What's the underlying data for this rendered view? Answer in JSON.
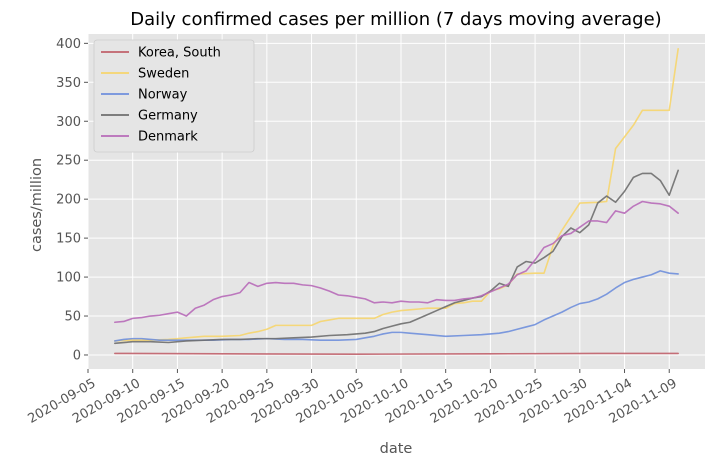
{
  "chart_data": {
    "type": "line",
    "title": "Daily confirmed cases per million (7 days moving average)",
    "xlabel": "date",
    "ylabel": "cases/million",
    "x_range": [
      "2020-09-05",
      "2020-11-13"
    ],
    "ylim": [
      -18,
      412
    ],
    "y_ticks": [
      0,
      50,
      100,
      150,
      200,
      250,
      300,
      350,
      400
    ],
    "x_ticks": [
      "2020-09-05",
      "2020-09-10",
      "2020-09-15",
      "2020-09-20",
      "2020-09-25",
      "2020-09-30",
      "2020-10-05",
      "2020-10-10",
      "2020-10-15",
      "2020-10-20",
      "2020-10-25",
      "2020-10-30",
      "2020-11-04",
      "2020-11-09"
    ],
    "grid": true,
    "legend_position": "top-left",
    "style": {
      "background": "#e5e5e5",
      "grid_color": "#ffffff"
    },
    "series": [
      {
        "name": "Korea, South",
        "color": "#c0616a",
        "points": [
          [
            "2020-09-08",
            2
          ],
          [
            "2020-09-20",
            1.5
          ],
          [
            "2020-10-05",
            1
          ],
          [
            "2020-10-20",
            1.5
          ],
          [
            "2020-11-01",
            2
          ],
          [
            "2020-11-10",
            2
          ]
        ]
      },
      {
        "name": "Sweden",
        "color": "#f6d56d",
        "points": [
          [
            "2020-09-08",
            18
          ],
          [
            "2020-09-10",
            19
          ],
          [
            "2020-09-12",
            19
          ],
          [
            "2020-09-14",
            20
          ],
          [
            "2020-09-15",
            21
          ],
          [
            "2020-09-16",
            22
          ],
          [
            "2020-09-18",
            24
          ],
          [
            "2020-09-20",
            24
          ],
          [
            "2020-09-22",
            25
          ],
          [
            "2020-09-23",
            28
          ],
          [
            "2020-09-24",
            30
          ],
          [
            "2020-09-25",
            33
          ],
          [
            "2020-09-26",
            38
          ],
          [
            "2020-09-28",
            38
          ],
          [
            "2020-09-30",
            38
          ],
          [
            "2020-10-01",
            43
          ],
          [
            "2020-10-02",
            45
          ],
          [
            "2020-10-03",
            47
          ],
          [
            "2020-10-05",
            47
          ],
          [
            "2020-10-07",
            47
          ],
          [
            "2020-10-08",
            52
          ],
          [
            "2020-10-09",
            55
          ],
          [
            "2020-10-10",
            57
          ],
          [
            "2020-10-11",
            58
          ],
          [
            "2020-10-12",
            59
          ],
          [
            "2020-10-13",
            60
          ],
          [
            "2020-10-15",
            60
          ],
          [
            "2020-10-16",
            66
          ],
          [
            "2020-10-17",
            67
          ],
          [
            "2020-10-18",
            69
          ],
          [
            "2020-10-19",
            69
          ],
          [
            "2020-10-20",
            82
          ],
          [
            "2020-10-21",
            85
          ],
          [
            "2020-10-22",
            90
          ],
          [
            "2020-10-23",
            104
          ],
          [
            "2020-10-25",
            105
          ],
          [
            "2020-10-26",
            105
          ],
          [
            "2020-10-27",
            140
          ],
          [
            "2020-10-28",
            160
          ],
          [
            "2020-10-30",
            195
          ],
          [
            "2020-11-01",
            196
          ],
          [
            "2020-11-02",
            197
          ],
          [
            "2020-11-03",
            265
          ],
          [
            "2020-11-04",
            280
          ],
          [
            "2020-11-05",
            295
          ],
          [
            "2020-11-06",
            314
          ],
          [
            "2020-11-08",
            314
          ],
          [
            "2020-11-09",
            314
          ],
          [
            "2020-11-10",
            393
          ]
        ]
      },
      {
        "name": "Norway",
        "color": "#6f8fdc",
        "points": [
          [
            "2020-09-08",
            18
          ],
          [
            "2020-09-09",
            20
          ],
          [
            "2020-09-10",
            21
          ],
          [
            "2020-09-11",
            21
          ],
          [
            "2020-09-12",
            20
          ],
          [
            "2020-09-13",
            19
          ],
          [
            "2020-09-15",
            19
          ],
          [
            "2020-09-17",
            19
          ],
          [
            "2020-09-19",
            19
          ],
          [
            "2020-09-21",
            20
          ],
          [
            "2020-09-23",
            20
          ],
          [
            "2020-09-25",
            21
          ],
          [
            "2020-09-27",
            20
          ],
          [
            "2020-09-29",
            20
          ],
          [
            "2020-10-01",
            19
          ],
          [
            "2020-10-03",
            19
          ],
          [
            "2020-10-05",
            20
          ],
          [
            "2020-10-06",
            22
          ],
          [
            "2020-10-07",
            24
          ],
          [
            "2020-10-08",
            27
          ],
          [
            "2020-10-09",
            29
          ],
          [
            "2020-10-10",
            29
          ],
          [
            "2020-10-11",
            28
          ],
          [
            "2020-10-12",
            27
          ],
          [
            "2020-10-13",
            26
          ],
          [
            "2020-10-15",
            24
          ],
          [
            "2020-10-17",
            25
          ],
          [
            "2020-10-19",
            26
          ],
          [
            "2020-10-21",
            28
          ],
          [
            "2020-10-22",
            30
          ],
          [
            "2020-10-23",
            33
          ],
          [
            "2020-10-24",
            36
          ],
          [
            "2020-10-25",
            39
          ],
          [
            "2020-10-26",
            45
          ],
          [
            "2020-10-27",
            50
          ],
          [
            "2020-10-28",
            55
          ],
          [
            "2020-10-29",
            61
          ],
          [
            "2020-10-30",
            66
          ],
          [
            "2020-10-31",
            68
          ],
          [
            "2020-11-01",
            72
          ],
          [
            "2020-11-02",
            78
          ],
          [
            "2020-11-03",
            86
          ],
          [
            "2020-11-04",
            93
          ],
          [
            "2020-11-05",
            97
          ],
          [
            "2020-11-06",
            100
          ],
          [
            "2020-11-07",
            103
          ],
          [
            "2020-11-08",
            108
          ],
          [
            "2020-11-09",
            105
          ],
          [
            "2020-11-10",
            104
          ]
        ]
      },
      {
        "name": "Germany",
        "color": "#6e6e6e",
        "points": [
          [
            "2020-09-08",
            15
          ],
          [
            "2020-09-10",
            17
          ],
          [
            "2020-09-12",
            17
          ],
          [
            "2020-09-14",
            16
          ],
          [
            "2020-09-16",
            18
          ],
          [
            "2020-09-18",
            19
          ],
          [
            "2020-09-20",
            20
          ],
          [
            "2020-09-22",
            20
          ],
          [
            "2020-09-24",
            21
          ],
          [
            "2020-09-26",
            21
          ],
          [
            "2020-09-28",
            22
          ],
          [
            "2020-09-30",
            23
          ],
          [
            "2020-10-02",
            25
          ],
          [
            "2020-10-04",
            26
          ],
          [
            "2020-10-06",
            28
          ],
          [
            "2020-10-07",
            30
          ],
          [
            "2020-10-08",
            34
          ],
          [
            "2020-10-09",
            37
          ],
          [
            "2020-10-10",
            40
          ],
          [
            "2020-10-11",
            42
          ],
          [
            "2020-10-12",
            47
          ],
          [
            "2020-10-13",
            52
          ],
          [
            "2020-10-14",
            57
          ],
          [
            "2020-10-15",
            62
          ],
          [
            "2020-10-16",
            67
          ],
          [
            "2020-10-17",
            70
          ],
          [
            "2020-10-18",
            73
          ],
          [
            "2020-10-19",
            75
          ],
          [
            "2020-10-20",
            82
          ],
          [
            "2020-10-21",
            92
          ],
          [
            "2020-10-22",
            88
          ],
          [
            "2020-10-23",
            113
          ],
          [
            "2020-10-24",
            120
          ],
          [
            "2020-10-25",
            118
          ],
          [
            "2020-10-26",
            125
          ],
          [
            "2020-10-27",
            133
          ],
          [
            "2020-10-28",
            152
          ],
          [
            "2020-10-29",
            163
          ],
          [
            "2020-10-30",
            157
          ],
          [
            "2020-10-31",
            167
          ],
          [
            "2020-11-01",
            195
          ],
          [
            "2020-11-02",
            204
          ],
          [
            "2020-11-03",
            196
          ],
          [
            "2020-11-04",
            210
          ],
          [
            "2020-11-05",
            228
          ],
          [
            "2020-11-06",
            233
          ],
          [
            "2020-11-07",
            233
          ],
          [
            "2020-11-08",
            224
          ],
          [
            "2020-11-09",
            205
          ],
          [
            "2020-11-10",
            237
          ]
        ]
      },
      {
        "name": "Denmark",
        "color": "#b76ab8",
        "points": [
          [
            "2020-09-08",
            42
          ],
          [
            "2020-09-09",
            43
          ],
          [
            "2020-09-10",
            47
          ],
          [
            "2020-09-11",
            48
          ],
          [
            "2020-09-12",
            50
          ],
          [
            "2020-09-13",
            51
          ],
          [
            "2020-09-14",
            53
          ],
          [
            "2020-09-15",
            55
          ],
          [
            "2020-09-16",
            50
          ],
          [
            "2020-09-17",
            60
          ],
          [
            "2020-09-18",
            64
          ],
          [
            "2020-09-19",
            71
          ],
          [
            "2020-09-20",
            75
          ],
          [
            "2020-09-21",
            77
          ],
          [
            "2020-09-22",
            80
          ],
          [
            "2020-09-23",
            93
          ],
          [
            "2020-09-24",
            88
          ],
          [
            "2020-09-25",
            92
          ],
          [
            "2020-09-26",
            93
          ],
          [
            "2020-09-27",
            92
          ],
          [
            "2020-09-28",
            92
          ],
          [
            "2020-09-29",
            90
          ],
          [
            "2020-09-30",
            89
          ],
          [
            "2020-10-01",
            86
          ],
          [
            "2020-10-02",
            82
          ],
          [
            "2020-10-03",
            77
          ],
          [
            "2020-10-04",
            76
          ],
          [
            "2020-10-05",
            74
          ],
          [
            "2020-10-06",
            72
          ],
          [
            "2020-10-07",
            67
          ],
          [
            "2020-10-08",
            68
          ],
          [
            "2020-10-09",
            67
          ],
          [
            "2020-10-10",
            69
          ],
          [
            "2020-10-11",
            68
          ],
          [
            "2020-10-12",
            68
          ],
          [
            "2020-10-13",
            67
          ],
          [
            "2020-10-14",
            71
          ],
          [
            "2020-10-15",
            70
          ],
          [
            "2020-10-16",
            70
          ],
          [
            "2020-10-17",
            72
          ],
          [
            "2020-10-18",
            73
          ],
          [
            "2020-10-19",
            76
          ],
          [
            "2020-10-20",
            81
          ],
          [
            "2020-10-21",
            86
          ],
          [
            "2020-10-22",
            91
          ],
          [
            "2020-10-23",
            103
          ],
          [
            "2020-10-24",
            108
          ],
          [
            "2020-10-25",
            122
          ],
          [
            "2020-10-26",
            138
          ],
          [
            "2020-10-27",
            143
          ],
          [
            "2020-10-28",
            153
          ],
          [
            "2020-10-29",
            156
          ],
          [
            "2020-10-30",
            164
          ],
          [
            "2020-10-31",
            172
          ],
          [
            "2020-11-01",
            172
          ],
          [
            "2020-11-02",
            170
          ],
          [
            "2020-11-03",
            185
          ],
          [
            "2020-11-04",
            182
          ],
          [
            "2020-11-05",
            191
          ],
          [
            "2020-11-06",
            197
          ],
          [
            "2020-11-07",
            195
          ],
          [
            "2020-11-08",
            194
          ],
          [
            "2020-11-09",
            191
          ],
          [
            "2020-11-10",
            182
          ]
        ]
      }
    ]
  }
}
